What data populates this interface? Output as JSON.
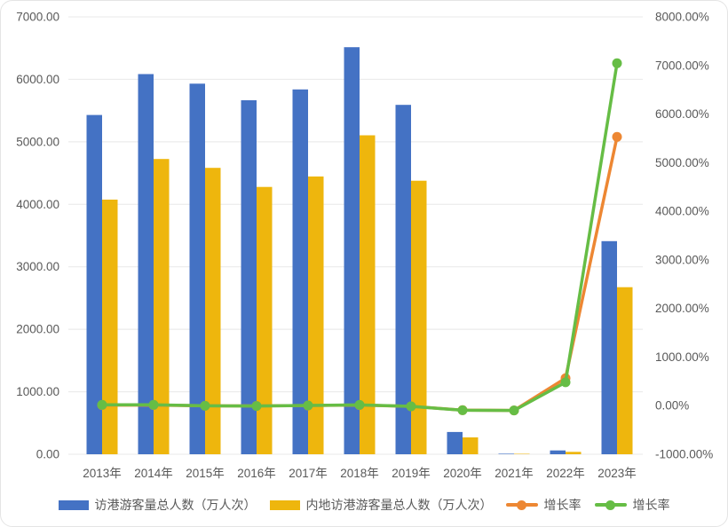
{
  "chart_data": {
    "type": "bar",
    "subtype": "dual-axis-bar-line-combo",
    "title": "",
    "categories": [
      "2013年",
      "2014年",
      "2015年",
      "2016年",
      "2017年",
      "2018年",
      "2019年",
      "2020年",
      "2021年",
      "2022年",
      "2023年"
    ],
    "series": [
      {
        "name": "访港游客量总人数（万人次）",
        "type": "bar",
        "axis": "left",
        "color": "#4472C4",
        "values": [
          5430,
          6084,
          5931,
          5665,
          5839,
          6515,
          5591,
          357,
          9.1,
          60.5,
          3411
        ]
      },
      {
        "name": "内地访港游客量总人数（万人次）",
        "type": "bar",
        "axis": "left",
        "color": "#EEB60D",
        "values": [
          4075,
          4725,
          4584,
          4278,
          4445,
          5104,
          4377,
          270,
          6.5,
          37.7,
          2674
        ]
      },
      {
        "name": "增长率",
        "type": "line",
        "axis": "right",
        "color": "#ED8733",
        "unit": "%",
        "values": [
          11.7,
          12.0,
          -2.5,
          -4.5,
          3.1,
          11.6,
          -14.2,
          -93.6,
          -97.4,
          565,
          5530
        ]
      },
      {
        "name": "增长率",
        "type": "line",
        "axis": "right",
        "color": "#66BD45",
        "unit": "%",
        "values": [
          16.7,
          16.0,
          -3.0,
          -6.7,
          3.9,
          14.8,
          -14.2,
          -93.8,
          -97.6,
          480,
          7046
        ]
      }
    ],
    "left_axis": {
      "min": 0,
      "max": 7000,
      "step": 1000,
      "ticks": [
        "0.00",
        "1000.00",
        "2000.00",
        "3000.00",
        "4000.00",
        "5000.00",
        "6000.00",
        "7000.00"
      ]
    },
    "right_axis": {
      "min": -1000,
      "max": 8000,
      "step": 1000,
      "ticks": [
        "-1000.00%",
        "0.00%",
        "1000.00%",
        "2000.00%",
        "3000.00%",
        "4000.00%",
        "5000.00%",
        "6000.00%",
        "7000.00%",
        "8000.00%"
      ]
    },
    "grid": {
      "horizontal": true,
      "vertical": false,
      "color": "#E8E8E8"
    },
    "legend_position": "bottom",
    "legend": [
      {
        "label": "访港游客量总人数（万人次）",
        "marker": "bar",
        "color": "#4472C4"
      },
      {
        "label": "内地访港游客量总人数（万人次）",
        "marker": "bar",
        "color": "#EEB60D"
      },
      {
        "label": "增长率",
        "marker": "line",
        "color": "#ED8733"
      },
      {
        "label": "增长率",
        "marker": "line",
        "color": "#66BD45"
      }
    ]
  }
}
